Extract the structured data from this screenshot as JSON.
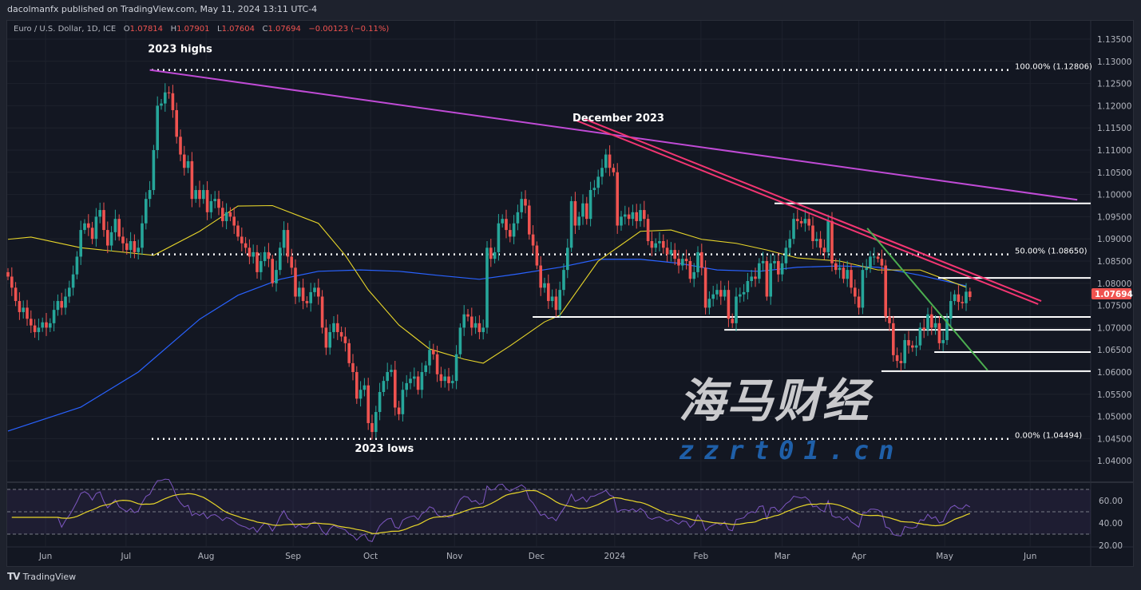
{
  "header": {
    "published": "dacolmanfx published on TradingView.com, May 11, 2024 13:11 UTC-4",
    "symbol": "Euro / U.S. Dollar, 1D, ICE",
    "o_label": "O",
    "o_value": "1.07814",
    "h_label": "H",
    "h_value": "1.07901",
    "l_label": "L",
    "l_value": "1.07604",
    "c_label": "C",
    "c_value": "1.07694",
    "change": "−0.00123 (−0.11%)"
  },
  "footer": {
    "brand": "TradingView",
    "logo_icon": "tradingview-logo-icon"
  },
  "watermark": {
    "text_cn": "海马财经",
    "text_url": "zzrt01.cn"
  },
  "colors": {
    "up": "#26a69a",
    "down": "#ef5350",
    "ma_fast": "#e8d62a",
    "ma_slow": "#2962ff",
    "trend_long": "#c04bd6",
    "trend_dec": "#f23672",
    "trend_apr": "#4caf50",
    "rsi": "#7e57c2",
    "rsi_ma": "#e8d62a",
    "last_price_bg": "#f05350"
  },
  "chart_data": {
    "type": "candlestick",
    "symbol": "EURUSD",
    "timeframe": "1D",
    "last_candle": {
      "open": 1.07814,
      "high": 1.07901,
      "low": 1.07604,
      "close": 1.07694
    },
    "last_price_label": "1.07694",
    "closes": [
      1.0815,
      1.079,
      1.076,
      1.0735,
      1.0745,
      1.072,
      1.0705,
      1.069,
      1.07,
      1.0712,
      1.07,
      1.071,
      1.074,
      1.076,
      1.0745,
      1.077,
      1.079,
      1.082,
      1.086,
      1.092,
      1.0935,
      1.0925,
      1.09,
      1.095,
      1.0965,
      1.092,
      1.0885,
      1.0915,
      1.0945,
      1.0905,
      1.089,
      1.0875,
      1.0895,
      1.087,
      1.088,
      1.0935,
      1.099,
      1.101,
      1.11,
      1.12,
      1.1205,
      1.123,
      1.1228,
      1.119,
      1.113,
      1.109,
      1.106,
      1.1075,
      1.099,
      1.101,
      1.099,
      1.101,
      1.096,
      1.0985,
      1.099,
      1.097,
      1.094,
      1.096,
      1.095,
      1.093,
      1.0905,
      1.089,
      1.088,
      1.086,
      1.087,
      1.0825,
      1.085,
      1.087,
      1.0855,
      1.08,
      1.083,
      1.088,
      1.092,
      1.086,
      1.0835,
      1.077,
      1.079,
      1.076,
      1.0755,
      1.078,
      1.079,
      1.077,
      1.07,
      1.0655,
      1.069,
      1.071,
      1.069,
      1.068,
      1.0665,
      1.062,
      1.06,
      1.054,
      1.056,
      1.057,
      1.0485,
      1.0465,
      1.051,
      1.0555,
      1.058,
      1.06,
      1.0605,
      1.052,
      1.0505,
      1.056,
      1.0575,
      1.0585,
      1.059,
      1.056,
      1.06,
      1.0615,
      1.065,
      1.064,
      1.0595,
      1.058,
      1.059,
      1.0575,
      1.058,
      1.064,
      1.07,
      1.073,
      1.0725,
      1.07,
      1.071,
      1.069,
      1.07,
      1.088,
      1.0855,
      1.087,
      1.0935,
      1.0945,
      1.092,
      1.0905,
      1.0935,
      1.096,
      1.099,
      1.0975,
      1.091,
      1.0885,
      1.084,
      1.079,
      1.08,
      1.076,
      1.077,
      1.074,
      1.0785,
      1.083,
      1.088,
      1.0985,
      1.093,
      1.095,
      1.098,
      1.0945,
      1.101,
      1.1015,
      1.104,
      1.106,
      1.109,
      1.106,
      1.105,
      1.093,
      1.095,
      1.0955,
      1.0945,
      1.096,
      1.094,
      1.0965,
      1.0945,
      1.0895,
      1.088,
      1.089,
      1.0895,
      1.088,
      1.0865,
      1.0875,
      1.0855,
      1.084,
      1.0855,
      1.085,
      1.081,
      1.0825,
      1.087,
      1.0835,
      1.0745,
      1.0765,
      1.0775,
      1.0785,
      1.077,
      1.0785,
      1.072,
      1.071,
      1.077,
      1.0775,
      1.078,
      1.0805,
      1.0815,
      1.081,
      1.0845,
      1.085,
      1.077,
      1.0845,
      1.085,
      1.082,
      1.0845,
      1.088,
      1.09,
      1.0945,
      1.094,
      1.0935,
      1.0945,
      1.093,
      1.0895,
      1.09,
      1.088,
      1.087,
      1.094,
      1.0845,
      1.083,
      1.0835,
      1.081,
      1.083,
      1.079,
      1.077,
      1.0745,
      1.083,
      1.0835,
      1.086,
      1.086,
      1.0855,
      1.084,
      1.0725,
      1.071,
      1.0638,
      1.0625,
      1.062,
      1.0672,
      1.066,
      1.0655,
      1.066,
      1.07,
      1.0695,
      1.073,
      1.07,
      1.071,
      1.0665,
      1.0672,
      1.072,
      1.076,
      1.0775,
      1.0758,
      1.0755,
      1.0781,
      1.0769
    ],
    "ma_fast": [
      [
        0,
        1.0899
      ],
      [
        6,
        1.0904
      ],
      [
        19,
        1.088
      ],
      [
        38,
        1.0863
      ],
      [
        50,
        1.0917
      ],
      [
        60,
        1.0974
      ],
      [
        69,
        1.0975
      ],
      [
        81,
        1.0935
      ],
      [
        88,
        1.0863
      ],
      [
        94,
        1.0785
      ],
      [
        102,
        1.0706
      ],
      [
        110,
        1.0652
      ],
      [
        119,
        1.0629
      ],
      [
        124,
        1.062
      ],
      [
        131,
        1.0659
      ],
      [
        140,
        1.0713
      ],
      [
        144,
        1.0728
      ],
      [
        154,
        1.085
      ],
      [
        165,
        1.0917
      ],
      [
        173,
        1.092
      ],
      [
        181,
        1.0899
      ],
      [
        190,
        1.089
      ],
      [
        198,
        1.0875
      ],
      [
        206,
        1.0857
      ],
      [
        217,
        1.085
      ],
      [
        227,
        1.083
      ],
      [
        238,
        1.083
      ],
      [
        250,
        1.0791
      ]
    ],
    "ma_slow": [
      [
        0,
        1.0467
      ],
      [
        19,
        1.0521
      ],
      [
        34,
        1.06
      ],
      [
        50,
        1.0719
      ],
      [
        60,
        1.0773
      ],
      [
        71,
        1.0809
      ],
      [
        81,
        1.0827
      ],
      [
        92,
        1.083
      ],
      [
        102,
        1.0827
      ],
      [
        112,
        1.0818
      ],
      [
        123,
        1.0809
      ],
      [
        133,
        1.0821
      ],
      [
        144,
        1.0836
      ],
      [
        154,
        1.0854
      ],
      [
        165,
        1.0854
      ],
      [
        175,
        1.0845
      ],
      [
        185,
        1.083
      ],
      [
        196,
        1.0827
      ],
      [
        206,
        1.0836
      ],
      [
        217,
        1.0839
      ],
      [
        227,
        1.0836
      ],
      [
        238,
        1.0818
      ],
      [
        250,
        1.0794
      ]
    ],
    "y_ticks": [
      "1.13500",
      "1.13000",
      "1.12500",
      "1.12000",
      "1.11500",
      "1.11000",
      "1.10500",
      "1.10000",
      "1.09500",
      "1.09000",
      "1.08500",
      "1.08000",
      "1.07500",
      "1.07000",
      "1.06500",
      "1.06000",
      "1.05500",
      "1.05000",
      "1.04500",
      "1.04000"
    ],
    "x_ticks": [
      {
        "label": "Jun",
        "index": 9.8
      },
      {
        "label": "Jul",
        "index": 30.8
      },
      {
        "label": "Aug",
        "index": 51.7
      },
      {
        "label": "Sep",
        "index": 74.4
      },
      {
        "label": "Oct",
        "index": 94.6
      },
      {
        "label": "Nov",
        "index": 116.5
      },
      {
        "label": "Dec",
        "index": 137.9
      },
      {
        "label": "2024",
        "index": 158.3
      },
      {
        "label": "Feb",
        "index": 180.8
      },
      {
        "label": "Mar",
        "index": 202
      },
      {
        "label": "Apr",
        "index": 222
      },
      {
        "label": "May",
        "index": 244.4
      },
      {
        "label": "Jun",
        "index": 266.7
      }
    ],
    "fib_levels": [
      {
        "label": "100.00% (1.12806)",
        "price": 1.12806
      },
      {
        "label": "50.00% (1.08650)",
        "price": 1.0865
      },
      {
        "label": "0.00% (1.04494)",
        "price": 1.04494
      }
    ],
    "horizontal_levels": [
      {
        "price": 1.098,
        "from_index": 200
      },
      {
        "price": 1.0812,
        "from_index": 242.7
      },
      {
        "price": 1.0724,
        "from_index": 136.9
      },
      {
        "price": 1.0695,
        "from_index": 186.9
      },
      {
        "price": 1.0645,
        "from_index": 241.7
      },
      {
        "price": 1.0602,
        "from_index": 227.9
      }
    ],
    "trendlines": [
      {
        "name": "long-term-trendline",
        "from": [
          37,
          1.12806
        ],
        "to": [
          279,
          1.0988
        ]
      },
      {
        "name": "december-trendline-a",
        "from": [
          147.9,
          1.1168
        ],
        "to": [
          268.8,
          1.0753
        ]
      },
      {
        "name": "december-trendline-b",
        "from": [
          150.4,
          1.117
        ],
        "to": [
          269.6,
          1.076
        ]
      },
      {
        "name": "april-trendline",
        "from": [
          224.2,
          1.0924
        ],
        "to": [
          255.6,
          1.0604
        ]
      }
    ],
    "annotations": [
      {
        "text": "2023 highs",
        "index": 36.5,
        "price": 1.132
      },
      {
        "text": "December 2023",
        "index": 147.3,
        "price": 1.1165
      },
      {
        "text": "2023 lows",
        "index": 90.5,
        "price": 1.042
      }
    ],
    "rsi": {
      "period": 14,
      "ma_period": 14,
      "levels": [
        70,
        50,
        30
      ],
      "y_ticks": [
        "60.00",
        "40.00",
        "20.00"
      ]
    }
  }
}
